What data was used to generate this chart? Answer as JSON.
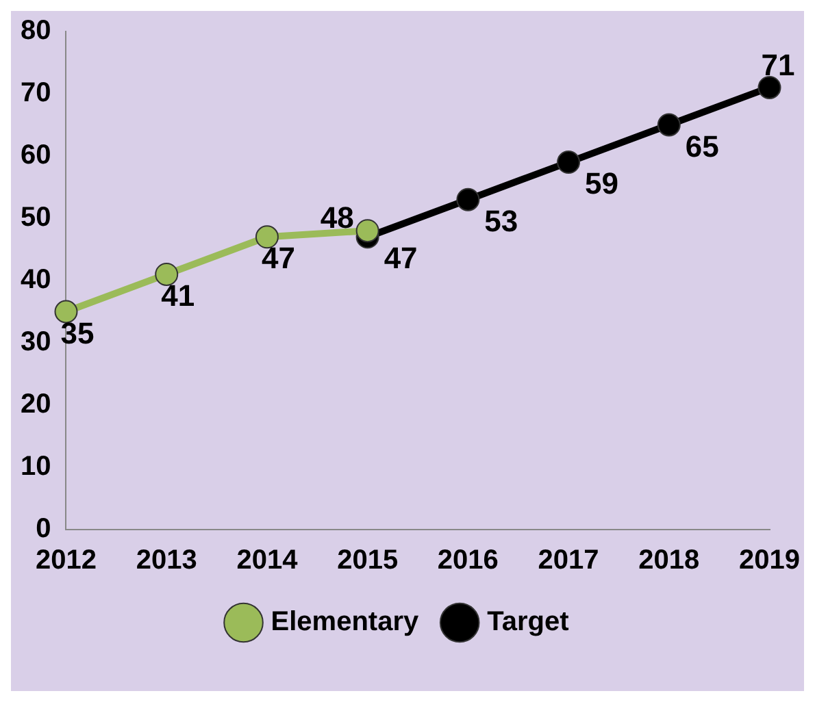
{
  "chart_data": {
    "type": "line",
    "categories": [
      "2012",
      "2013",
      "2014",
      "2015",
      "2016",
      "2017",
      "2018",
      "2019"
    ],
    "series": [
      {
        "name": "Elementary",
        "color": "#9bbb59",
        "values": [
          35,
          41,
          47,
          48,
          null,
          null,
          null,
          null
        ]
      },
      {
        "name": "Target",
        "color": "#000000",
        "values": [
          null,
          null,
          null,
          47,
          53,
          59,
          65,
          71
        ]
      }
    ],
    "ylim": [
      0,
      80
    ],
    "yticks": [
      0,
      10,
      20,
      30,
      40,
      50,
      60,
      70,
      80
    ],
    "grid": false,
    "legend": "bottom",
    "marker": "circle",
    "line_style": "solid",
    "data_labels": true
  }
}
